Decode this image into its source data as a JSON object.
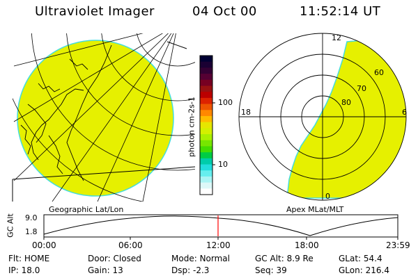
{
  "header": {
    "instrument": "Ultraviolet Imager",
    "date": "04 Oct 00",
    "time": "11:52:14 UT"
  },
  "geo_panel": {
    "label": "Geographic Lat/Lon"
  },
  "polar_panel": {
    "label": "Apex MLat/MLT",
    "mlt_labels": [
      "12",
      "18",
      "6",
      "0"
    ],
    "lat_labels": [
      "60",
      "70",
      "80"
    ]
  },
  "colorbar": {
    "unit_label": "photon cm-2s-1",
    "ticks": [
      "100",
      "10"
    ],
    "colors": [
      "#000033",
      "#1a0033",
      "#330033",
      "#550033",
      "#770022",
      "#991111",
      "#bb0000",
      "#dd2200",
      "#ee5500",
      "#ff8800",
      "#ffbb00",
      "#e6e600",
      "#d4f000",
      "#aaf000",
      "#77e600",
      "#44dd00",
      "#00cc44",
      "#00ccaa",
      "#22dddd",
      "#66eeee",
      "#aaf4f4",
      "#ddf8f8",
      "#ffffff"
    ]
  },
  "altitude_plot": {
    "ylabel": "GC Alt",
    "yticks": [
      "9.0",
      "1.8"
    ],
    "xticks": [
      "00:00",
      "06:00",
      "12:00",
      "18:00",
      "23:59"
    ],
    "current_time": "12:00"
  },
  "footer": {
    "row1": [
      {
        "label": "Flt:",
        "value": "HOME"
      },
      {
        "label": "Door:",
        "value": "Closed"
      },
      {
        "label": "Mode:",
        "value": "Normal"
      },
      {
        "label": "GC Alt:",
        "value": "8.9 Re"
      },
      {
        "label": "GLat:",
        "value": "54.4"
      }
    ],
    "row2": [
      {
        "label": "IP:",
        "value": "18.0"
      },
      {
        "label": "Gain:",
        "value": "13"
      },
      {
        "label": "Dsp:",
        "value": "-2.3"
      },
      {
        "label": "Seq:",
        "value": "39"
      },
      {
        "label": "GLon:",
        "value": "216.4"
      }
    ]
  },
  "colors": {
    "emission": "#e6f000",
    "edge": "#44dddd",
    "marker": "#ff0000"
  }
}
